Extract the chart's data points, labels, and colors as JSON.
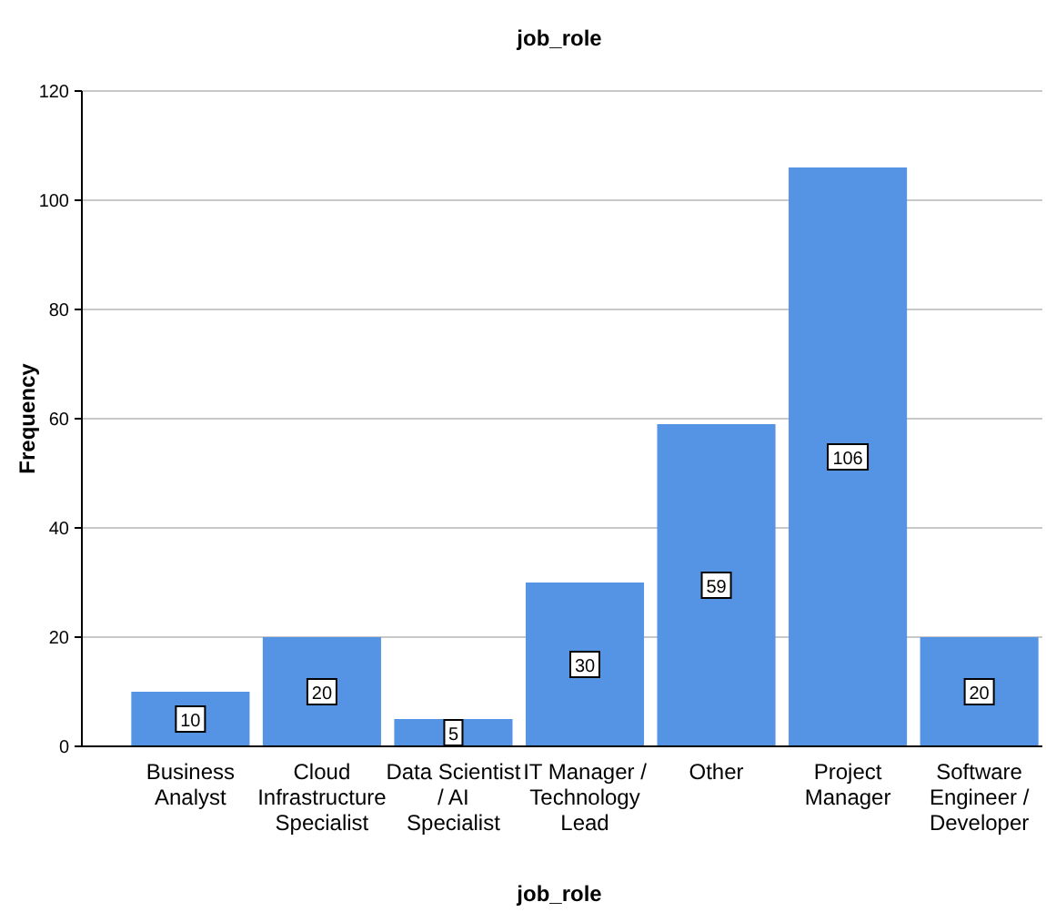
{
  "chart_data": {
    "type": "bar",
    "title": "job_role",
    "xlabel": "job_role",
    "ylabel": "Frequency",
    "categories": [
      "Business Analyst",
      "Cloud Infrastructure Specialist",
      "Data Scientist / AI Specialist",
      "IT Manager / Technology Lead",
      "Other",
      "Project Manager",
      "Software Engineer / Developer"
    ],
    "values": [
      10,
      20,
      5,
      30,
      59,
      106,
      20
    ],
    "color": "#5594e5",
    "ylim": [
      0,
      120
    ],
    "yticks": [
      0,
      20,
      40,
      60,
      80,
      100,
      120
    ],
    "grid": "y",
    "data_labels": true
  }
}
